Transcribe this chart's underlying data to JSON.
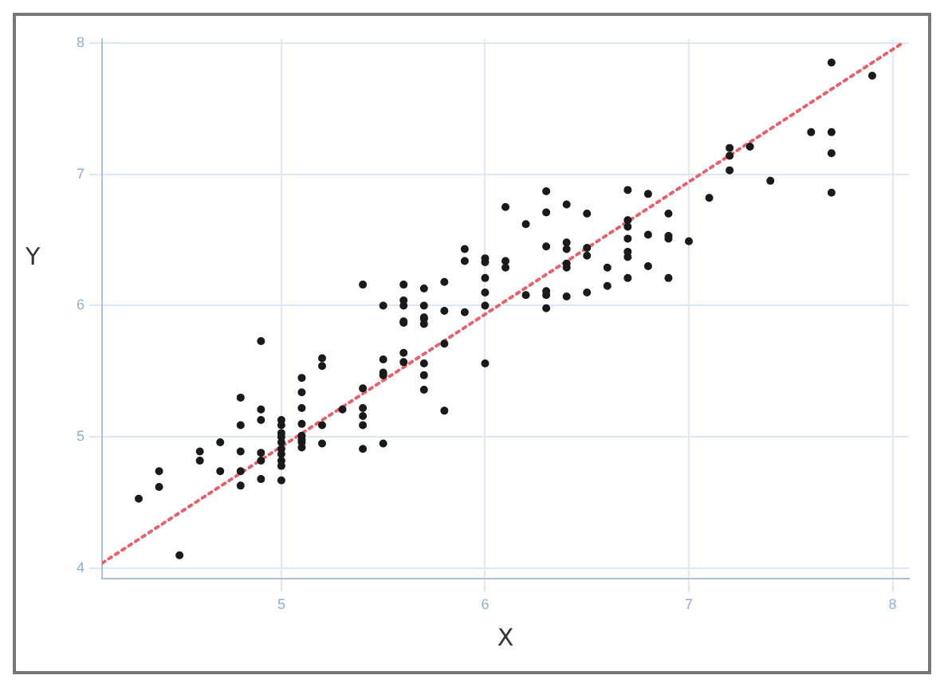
{
  "chart_data": {
    "type": "scatter",
    "xlabel": "X",
    "ylabel": "Y",
    "xlim": [
      4.12,
      8.08
    ],
    "ylim": [
      3.92,
      8.03
    ],
    "xticks": [
      5,
      6,
      7,
      8
    ],
    "yticks": [
      4,
      5,
      6,
      7,
      8
    ],
    "grid": true,
    "marker": "circle",
    "series": [
      {
        "type": "scatter",
        "color": "#1a1a1a",
        "x": [
          4.3,
          4.4,
          4.4,
          4.5,
          4.6,
          4.6,
          4.7,
          4.7,
          4.8,
          4.8,
          4.8,
          4.8,
          4.8,
          4.9,
          4.9,
          4.9,
          4.9,
          4.9,
          4.9,
          5,
          5,
          5,
          5,
          5,
          5,
          5,
          5,
          5,
          5,
          5.1,
          5.1,
          5.1,
          5.1,
          5.1,
          5.1,
          5.1,
          5.1,
          5.2,
          5.2,
          5.2,
          5.2,
          5.3,
          5.4,
          5.4,
          5.4,
          5.4,
          5.4,
          5.5,
          5.5,
          5.5,
          5.5,
          5.6,
          5.6,
          5.6,
          5.7,
          5.7,
          5.7,
          5.7,
          5.7,
          5.8,
          5.8,
          6,
          5.4,
          5.5,
          5.6,
          5.6,
          5.6,
          5.6,
          5.7,
          5.7,
          5.7,
          5.8,
          5.8,
          5.9,
          5.9,
          5.9,
          6,
          6,
          6,
          6,
          6,
          6.1,
          6.1,
          6.1,
          6.2,
          6.2,
          6.3,
          6.3,
          6.3,
          6.3,
          6.3,
          6.3,
          6.4,
          6.4,
          6.4,
          6.4,
          6.4,
          6.4,
          6.5,
          6.5,
          6.5,
          6.5,
          6.6,
          6.6,
          6.7,
          6.7,
          6.7,
          6.7,
          6.7,
          6.7,
          6.7,
          6.8,
          6.8,
          6.8,
          6.9,
          6.9,
          6.9,
          6.9,
          7,
          7.1,
          7.2,
          7.2,
          7.2,
          7.3,
          7.4,
          7.6,
          7.7,
          7.7,
          7.7,
          7.7,
          7.9
        ],
        "values": [
          4.53,
          4.74,
          4.62,
          4.1,
          4.89,
          4.82,
          4.96,
          4.74,
          5.3,
          5.09,
          4.89,
          4.74,
          4.63,
          5.73,
          5.21,
          5.13,
          4.88,
          4.82,
          4.68,
          5.13,
          5.09,
          5.03,
          5,
          4.96,
          4.91,
          4.87,
          4.82,
          4.78,
          4.67,
          5.45,
          5.34,
          5.22,
          5.1,
          5.01,
          4.98,
          4.96,
          4.92,
          5.6,
          5.54,
          5.09,
          4.95,
          5.21,
          5.37,
          5.22,
          5.16,
          5.09,
          4.91,
          5.59,
          5.49,
          5.47,
          4.95,
          5.87,
          5.64,
          5.57,
          5.9,
          5.86,
          5.56,
          5.47,
          5.36,
          5.71,
          5.2,
          5.56,
          6.16,
          6,
          6.16,
          6.04,
          6,
          5.88,
          6.13,
          6,
          5.91,
          6.18,
          5.96,
          6.43,
          6.34,
          5.95,
          6.36,
          6.33,
          6.21,
          6.1,
          6,
          6.75,
          6.34,
          6.29,
          6.62,
          6.08,
          6.87,
          6.71,
          6.45,
          6.11,
          6.08,
          5.98,
          6.77,
          6.48,
          6.43,
          6.32,
          6.29,
          6.07,
          6.7,
          6.44,
          6.38,
          6.1,
          6.29,
          6.15,
          6.88,
          6.65,
          6.6,
          6.51,
          6.41,
          6.37,
          6.21,
          6.85,
          6.54,
          6.3,
          6.7,
          6.53,
          6.51,
          6.21,
          6.49,
          6.82,
          7.2,
          7.14,
          7.03,
          7.21,
          6.95,
          7.32,
          7.85,
          7.32,
          7.16,
          6.86,
          7.75
        ]
      },
      {
        "type": "line",
        "color": "#e8606a",
        "line_style": "dotted",
        "marker": "none",
        "x": [
          4.12,
          8.05
        ],
        "values": [
          4.04,
          8.0
        ]
      }
    ]
  }
}
